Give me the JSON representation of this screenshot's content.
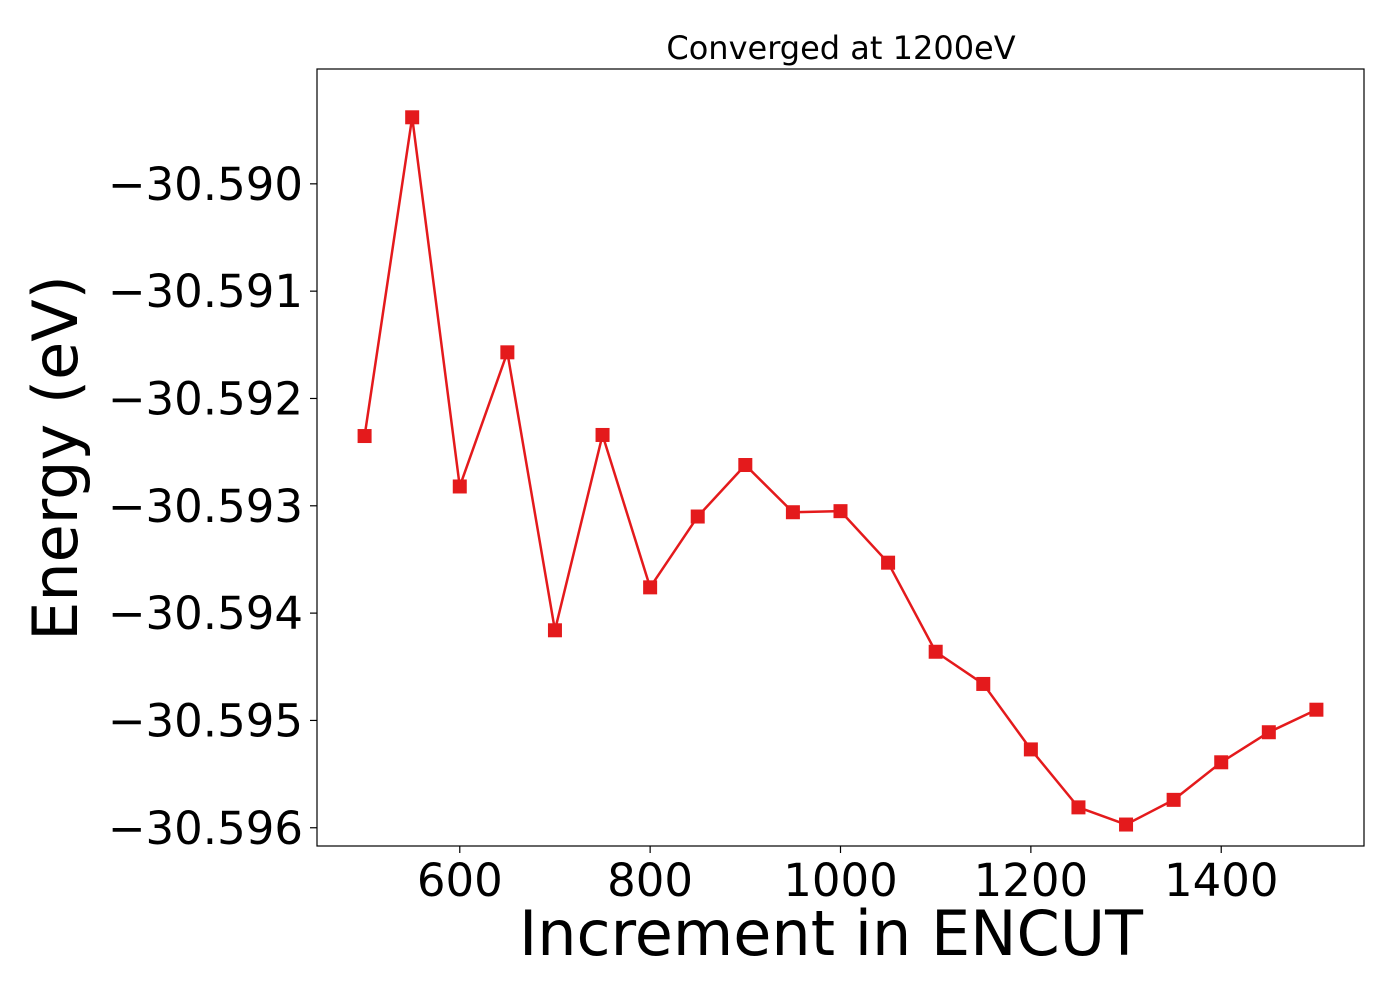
{
  "chart_data": {
    "type": "line",
    "title": "Converged at 1200eV",
    "xlabel": "Increment in ENCUT",
    "ylabel": "Energy (eV)",
    "xlim": [
      450,
      1550
    ],
    "ylim": [
      -30.59617,
      -30.58893
    ],
    "x_ticks": [
      600,
      800,
      1000,
      1200,
      1400
    ],
    "x_tick_labels": [
      "600",
      "800",
      "1000",
      "1200",
      "1400"
    ],
    "y_ticks": [
      -30.59,
      -30.591,
      -30.592,
      -30.593,
      -30.594,
      -30.595,
      -30.596
    ],
    "y_tick_labels": [
      "−30.590",
      "−30.591",
      "−30.592",
      "−30.593",
      "−30.594",
      "−30.595",
      "−30.596"
    ],
    "grid": false,
    "series": [
      {
        "color": "#e41a1c",
        "marker": "square",
        "x": [
          500,
          550,
          600,
          650,
          700,
          750,
          800,
          850,
          900,
          950,
          1000,
          1050,
          1100,
          1150,
          1200,
          1250,
          1300,
          1350,
          1400,
          1450,
          1500
        ],
        "y": [
          -30.59235,
          -30.58938,
          -30.59282,
          -30.59157,
          -30.59416,
          -30.59234,
          -30.59376,
          -30.5931,
          -30.59262,
          -30.59306,
          -30.59305,
          -30.59353,
          -30.59436,
          -30.59466,
          -30.59527,
          -30.59581,
          -30.59597,
          -30.59574,
          -30.59539,
          -30.59511,
          -30.5949
        ]
      }
    ]
  }
}
